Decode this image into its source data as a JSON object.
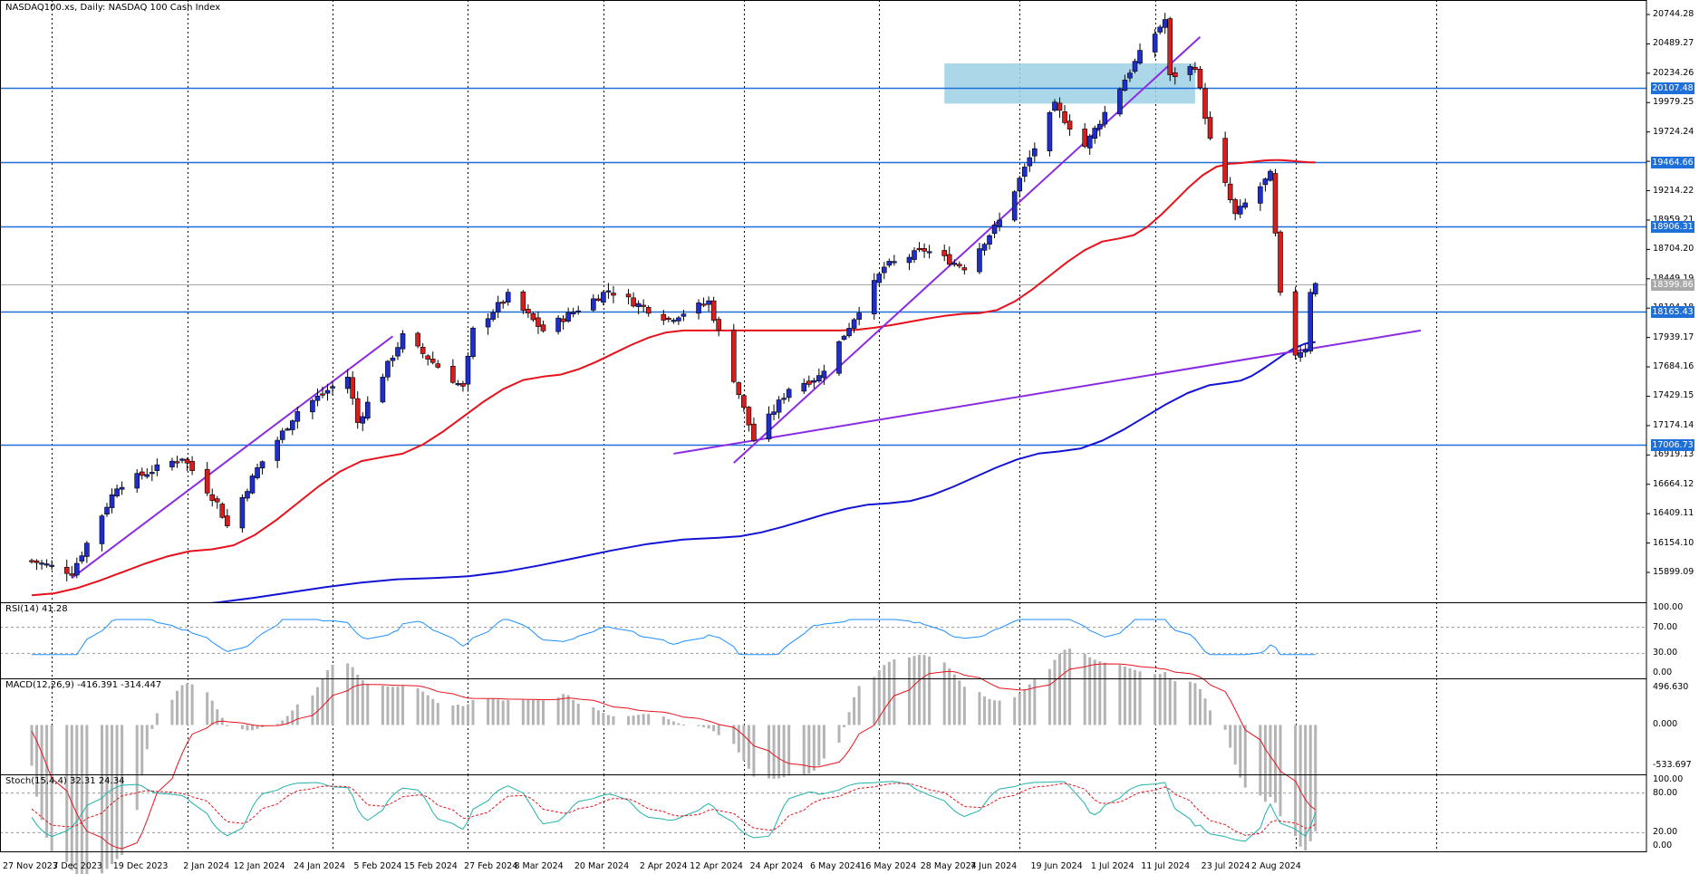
{
  "header": {
    "symbol": "NASDAQ100.xs",
    "timeframe": "Daily",
    "description": "NASDAQ 100 Cash Index",
    "title_text": "NASDAQ100.xs, Daily:  NASDAQ 100 Cash Index"
  },
  "colors": {
    "bull_candle": "#1f2ec9",
    "bear_candle": "#d91d1d",
    "sma_red": "#e8111b",
    "sma_blue": "#1313d6",
    "trendline": "#8a2be2",
    "hline": "#1f6fd8",
    "zone": "#9dd0e4",
    "rsi": "#1e90ff",
    "macd_hist": "#b4b4b4",
    "macd_signal": "#e8111b",
    "stoch_main": "#20b2aa",
    "stoch_signal": "#e8111b"
  },
  "price_axis": {
    "ticks": [
      "20744.28",
      "20489.27",
      "20234.26",
      "19979.25",
      "19724.24",
      "19469.23",
      "19214.22",
      "18959.21",
      "18704.20",
      "18449.19",
      "18194.18",
      "17939.17",
      "17684.16",
      "17429.15",
      "17174.14",
      "16919.13",
      "16664.12",
      "16409.11",
      "16154.10",
      "15899.09"
    ],
    "tick_values": [
      20744.28,
      20489.27,
      20234.26,
      19979.25,
      19724.24,
      19469.23,
      19214.22,
      18959.21,
      18704.2,
      18449.19,
      18194.18,
      17939.17,
      17684.16,
      17429.15,
      17174.14,
      16919.13,
      16664.12,
      16409.11,
      16154.1,
      15899.09
    ],
    "levels": [
      {
        "label": "20107.48",
        "value": 20107.48
      },
      {
        "label": "19464.66",
        "value": 19464.66
      },
      {
        "label": "18906.31",
        "value": 18906.31
      },
      {
        "label": "18165.43",
        "value": 18165.43
      },
      {
        "label": "17006.73",
        "value": 17006.73
      }
    ],
    "current_price": {
      "label": "18399.86",
      "value": 18399.86
    }
  },
  "time_axis": [
    "27 Nov 2023",
    "7 Dec 2023",
    "19 Dec 2023",
    "2 Jan 2024",
    "12 Jan 2024",
    "24 Jan 2024",
    "5 Feb 2024",
    "15 Feb 2024",
    "27 Feb 2024",
    "8 Mar 2024",
    "20 Mar 2024",
    "2 Apr 2024",
    "12 Apr 2024",
    "24 Apr 2024",
    "6 May 2024",
    "16 May 2024",
    "28 May 2024",
    "7 Jun 2024",
    "19 Jun 2024",
    "1 Jul 2024",
    "11 Jul 2024",
    "23 Jul 2024",
    "2 Aug 2024"
  ],
  "rsi": {
    "label": "RSI(14) 41.28",
    "ticks": [
      "100.00",
      "70.00",
      "30.00",
      "0.00"
    ],
    "tick_values": [
      100,
      70,
      30,
      0
    ],
    "last": 41.28
  },
  "macd": {
    "label": "MACD(12,26,9) -416.391 -314.447",
    "ticks": [
      "496.630",
      "0.000",
      "-533.697"
    ],
    "tick_values": [
      496.63,
      0,
      -533.697
    ],
    "last_main": -416.391,
    "last_signal": -314.447
  },
  "stoch": {
    "label": "Stoch(15,4,4) 32.31 24.34",
    "ticks": [
      "100.00",
      "80.00",
      "20.00",
      "0.00"
    ],
    "tick_values": [
      100,
      80,
      20,
      0
    ],
    "last_main": 32.31,
    "last_signal": 24.34
  },
  "chart_data": {
    "type": "candlestick",
    "title": "NASDAQ100.xs, Daily:  NASDAQ 100 Cash Index",
    "ylim": [
      15850,
      20820
    ],
    "waypoints": [
      {
        "date": "27 Nov 2023",
        "close": 16000
      },
      {
        "date": "5 Dec 2023",
        "close": 15900
      },
      {
        "date": "14 Dec 2023",
        "close": 16650
      },
      {
        "date": "27 Dec 2023",
        "close": 16900
      },
      {
        "date": "3 Jan 2024",
        "close": 16500
      },
      {
        "date": "5 Jan 2024",
        "close": 16300
      },
      {
        "date": "11 Jan 2024",
        "close": 16800
      },
      {
        "date": "19 Jan 2024",
        "close": 17300
      },
      {
        "date": "29 Jan 2024",
        "close": 17600
      },
      {
        "date": "31 Jan 2024",
        "close": 17200
      },
      {
        "date": "9 Feb 2024",
        "close": 17950
      },
      {
        "date": "21 Feb 2024",
        "close": 17500
      },
      {
        "date": "23 Feb 2024",
        "close": 18000
      },
      {
        "date": "1 Mar 2024",
        "close": 18300
      },
      {
        "date": "8 Mar 2024",
        "close": 18000
      },
      {
        "date": "21 Mar 2024",
        "close": 18350
      },
      {
        "date": "2 Apr 2024",
        "close": 18100
      },
      {
        "date": "10 Apr 2024",
        "close": 18250
      },
      {
        "date": "19 Apr 2024",
        "close": 17050
      },
      {
        "date": "26 Apr 2024",
        "close": 17500
      },
      {
        "date": "2 May 2024",
        "close": 17600
      },
      {
        "date": "15 May 2024",
        "close": 18550
      },
      {
        "date": "23 May 2024",
        "close": 18700
      },
      {
        "date": "31 May 2024",
        "close": 18550
      },
      {
        "date": "7 Jun 2024",
        "close": 18950
      },
      {
        "date": "18 Jun 2024",
        "close": 19950
      },
      {
        "date": "24 Jun 2024",
        "close": 19600
      },
      {
        "date": "5 Jul 2024",
        "close": 20400
      },
      {
        "date": "10 Jul 2024",
        "close": 20700
      },
      {
        "date": "11 Jul 2024",
        "close": 20200
      },
      {
        "date": "16 Jul 2024",
        "close": 20300
      },
      {
        "date": "19 Jul 2024",
        "close": 19650
      },
      {
        "date": "24 Jul 2024",
        "close": 19000
      },
      {
        "date": "31 Jul 2024",
        "close": 19350
      },
      {
        "date": "2 Aug 2024",
        "close": 18300
      },
      {
        "date": "5 Aug 2024",
        "close": 17800
      },
      {
        "date": "7 Aug 2024",
        "close": 17850
      },
      {
        "date": "8 Aug 2024",
        "close": 18350
      },
      {
        "date": "9 Aug 2024",
        "close": 18400
      }
    ],
    "sma_red_points": [
      {
        "date": "27 Nov 2023",
        "value": 15700
      },
      {
        "date": "2 Jan 2024",
        "value": 16100
      },
      {
        "date": "5 Feb 2024",
        "value": 16900
      },
      {
        "date": "8 Mar 2024",
        "value": 17600
      },
      {
        "date": "5 Apr 2024",
        "value": 18000
      },
      {
        "date": "6 May 2024",
        "value": 18000
      },
      {
        "date": "3 Jun 2024",
        "value": 18150
      },
      {
        "date": "1 Jul 2024",
        "value": 18800
      },
      {
        "date": "23 Jul 2024",
        "value": 19450
      },
      {
        "date": "1 Aug 2024",
        "value": 19480
      },
      {
        "date": "9 Aug 2024",
        "value": 19460
      }
    ],
    "sma_blue_points": [
      {
        "date": "20 Dec 2023",
        "value": 15600
      },
      {
        "date": "15 Feb 2024",
        "value": 15850
      },
      {
        "date": "12 Apr 2024",
        "value": 16200
      },
      {
        "date": "16 May 2024",
        "value": 16500
      },
      {
        "date": "19 Jun 2024",
        "value": 16950
      },
      {
        "date": "23 Jul 2024",
        "value": 17550
      },
      {
        "date": "9 Aug 2024",
        "value": 17900
      }
    ],
    "trendlines": [
      {
        "from": {
          "date": "5 Dec 2023",
          "value": 15850
        },
        "to": {
          "date": "7 Feb 2024",
          "value": 17950
        }
      },
      {
        "from": {
          "date": "15 Apr 2024",
          "value": 16850
        },
        "to": {
          "date": "17 Jul 2024",
          "value": 20550
        }
      },
      {
        "from": {
          "date": "3 Apr 2024",
          "value": 16930
        },
        "to": {
          "date": "30 Aug 2024",
          "value": 18000
        }
      }
    ],
    "resistance_zone": {
      "date_from": "27 May 2024",
      "date_to": "16 Jul 2024",
      "value_low": 19970,
      "value_high": 20320
    }
  }
}
